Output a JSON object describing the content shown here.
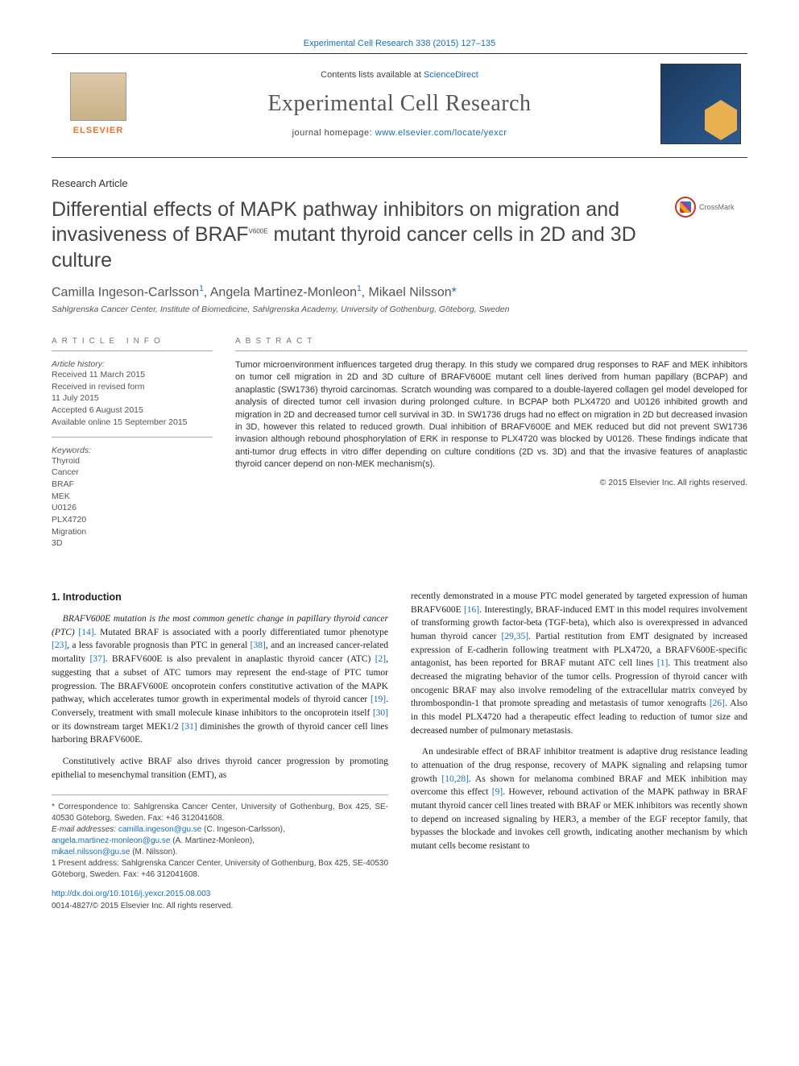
{
  "header": {
    "journal_pages": "Experimental Cell Research 338 (2015) 127–135",
    "contents_text": "Contents lists available at ",
    "contents_link": "ScienceDirect",
    "journal_name": "Experimental Cell Research",
    "homepage_text": "journal homepage: ",
    "homepage_link": "www.elsevier.com/locate/yexcr",
    "elsevier": "ELSEVIER"
  },
  "article": {
    "type": "Research Article",
    "title_line1": "Differential effects of MAPK pathway inhibitors on migration and invasiveness of BRAF",
    "title_sup": "V600E",
    "title_line2": " mutant thyroid cancer cells in 2D and 3D culture",
    "crossmark": "CrossMark",
    "authors_html": "Camilla Ingeson-Carlsson",
    "author_sup1": "1",
    "author2": ", Angela Martinez-Monleon",
    "author_sup2": "1",
    "author3": ", Mikael Nilsson",
    "author_ast": "*",
    "affiliation": "Sahlgrenska Cancer Center, Institute of Biomedicine, Sahlgrenska Academy, University of Gothenburg, Göteborg, Sweden"
  },
  "info": {
    "head": "ARTICLE INFO",
    "history_label": "Article history:",
    "received": "Received 11 March 2015",
    "revised": "Received in revised form",
    "revised_date": "11 July 2015",
    "accepted": "Accepted 6 August 2015",
    "online": "Available online 15 September 2015",
    "keywords_label": "Keywords:",
    "keywords": [
      "Thyroid",
      "Cancer",
      "BRAF",
      "MEK",
      "U0126",
      "PLX4720",
      "Migration",
      "3D"
    ]
  },
  "abstract": {
    "head": "ABSTRACT",
    "text": "Tumor microenvironment influences targeted drug therapy. In this study we compared drug responses to RAF and MEK inhibitors on tumor cell migration in 2D and 3D culture of BRAFV600E mutant cell lines derived from human papillary (BCPAP) and anaplastic (SW1736) thyroid carcinomas. Scratch wounding was compared to a double-layered collagen gel model developed for analysis of directed tumor cell invasion during prolonged culture. In BCPAP both PLX4720 and U0126 inhibited growth and migration in 2D and decreased tumor cell survival in 3D. In SW1736 drugs had no effect on migration in 2D but decreased invasion in 3D, however this related to reduced growth. Dual inhibition of BRAFV600E and MEK reduced but did not prevent SW1736 invasion although rebound phosphorylation of ERK in response to PLX4720 was blocked by U0126. These findings indicate that anti-tumor drug effects in vitro differ depending on culture conditions (2D vs. 3D) and that the invasive features of anaplastic thyroid cancer depend on non-MEK mechanism(s).",
    "copyright": "© 2015 Elsevier Inc. All rights reserved."
  },
  "section1": {
    "head": "1.  Introduction",
    "p1_a": "BRAFV600E mutation is the most common genetic change in papillary thyroid cancer (PTC) ",
    "p1_r1": "[14]",
    "p1_b": ". Mutated BRAF is associated with a poorly differentiated tumor phenotype ",
    "p1_r2": "[23]",
    "p1_c": ", a less favorable prognosis than PTC in general ",
    "p1_r3": "[38]",
    "p1_d": ", and an increased cancer-related mortality ",
    "p1_r4": "[37]",
    "p1_e": ". BRAFV600E is also prevalent in anaplastic thyroid cancer (ATC) ",
    "p1_r5": "[2]",
    "p1_f": ", suggesting that a subset of ATC tumors may represent the end-stage of PTC tumor progression. The BRAFV600E oncoprotein confers constitutive activation of the MAPK pathway, which accelerates tumor growth in experimental models of thyroid cancer ",
    "p1_r6": "[19]",
    "p1_g": ". Conversely, treatment with small molecule kinase inhibitors to the oncoprotein itself ",
    "p1_r7": "[30]",
    "p1_h": " or its downstream target MEK1/2 ",
    "p1_r8": "[31]",
    "p1_i": " diminishes the growth of thyroid cancer cell lines harboring BRAFV600E.",
    "p2_a": "Constitutively active BRAF also drives thyroid cancer progression by promoting epithelial to mesenchymal transition (EMT), as",
    "p3_a": "recently demonstrated in a mouse PTC model generated by targeted expression of human BRAFV600E ",
    "p3_r1": "[16]",
    "p3_b": ". Interestingly, BRAF-induced EMT in this model requires involvement of transforming growth factor-beta (TGF-beta), which also is overexpressed in advanced human thyroid cancer ",
    "p3_r2": "[29,35]",
    "p3_c": ". Partial restitution from EMT designated by increased expression of E-cadherin following treatment with PLX4720, a BRAFV600E-specific antagonist, has been reported for BRAF mutant ATC cell lines ",
    "p3_r3": "[1]",
    "p3_d": ". This treatment also decreased the migrating behavior of the tumor cells. Progression of thyroid cancer with oncogenic BRAF may also involve remodeling of the extracellular matrix conveyed by thrombospondin-1 that promote spreading and metastasis of tumor xenografts ",
    "p3_r4": "[26]",
    "p3_e": ". Also in this model PLX4720 had a therapeutic effect leading to reduction of tumor size and decreased number of pulmonary metastasis.",
    "p4_a": "An undesirable effect of BRAF inhibitor treatment is adaptive drug resistance leading to attenuation of the drug response, recovery of MAPK signaling and relapsing tumor growth ",
    "p4_r1": "[10,28]",
    "p4_b": ". As shown for melanoma combined BRAF and MEK inhibition may overcome this effect ",
    "p4_r2": "[9]",
    "p4_c": ". However, rebound activation of the MAPK pathway in BRAF mutant thyroid cancer cell lines treated with BRAF or MEK inhibitors was recently shown to depend on increased signaling by HER3, a member of the EGF receptor family, that bypasses the blockade and invokes cell growth, indicating another mechanism by which mutant cells become resistant to"
  },
  "footnotes": {
    "corr_label": "* Correspondence to: Sahlgrenska Cancer Center, University of Gothenburg, Box 425, SE-40530 Göteborg, Sweden. Fax: +46 312041608.",
    "email_label": "E-mail addresses: ",
    "email1": "camilla.ingeson@gu.se",
    "email1_name": " (C. Ingeson-Carlsson),",
    "email2": "angela.martinez-monleon@gu.se",
    "email2_name": " (A. Martinez-Monleon),",
    "email3": "mikael.nilsson@gu.se",
    "email3_name": " (M. Nilsson).",
    "fn1": "1 Present address: Sahlgrenska Cancer Center, University of Gothenburg, Box 425, SE-40530 Göteborg, Sweden. Fax: +46 312041608."
  },
  "doi": {
    "link": "http://dx.doi.org/10.1016/j.yexcr.2015.08.003",
    "issn": "0014-4827/© 2015 Elsevier Inc. All rights reserved."
  }
}
